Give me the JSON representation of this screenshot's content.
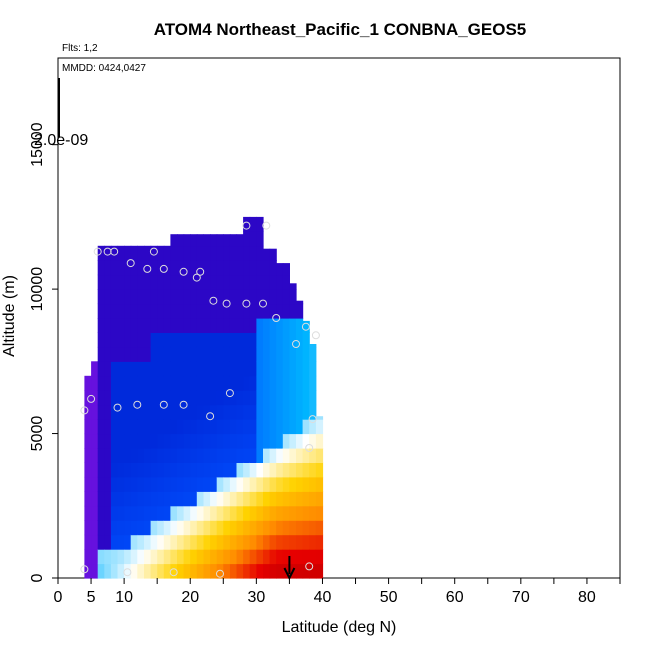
{
  "chart_data": {
    "type": "heatmap",
    "title": "ATOM4 Northeast_Pacific_1 CONBNA_GEOS5",
    "annotations": {
      "flights": "Flts: 1,2",
      "dates": "MMDD: 0424,0427",
      "scale_label": "2.0e-09"
    },
    "xlabel": "Latitude (deg N)",
    "ylabel": "Altitude (m)",
    "xlim": [
      0,
      85
    ],
    "ylim": [
      0,
      18000
    ],
    "x_ticks": [
      0,
      5,
      10,
      20,
      30,
      40,
      50,
      60,
      70,
      80
    ],
    "y_ticks": [
      0,
      5000,
      10000,
      15000
    ],
    "column_tops_m": [
      [
        4,
        6.5,
        7000
      ],
      [
        5,
        6.5,
        7500
      ],
      [
        6,
        11500
      ],
      [
        12,
        11500
      ],
      [
        17,
        11900
      ],
      [
        19,
        11900
      ],
      [
        24,
        11900
      ],
      [
        28,
        12500
      ],
      [
        31,
        11400
      ],
      [
        33,
        10900
      ],
      [
        35,
        10200
      ],
      [
        36,
        9600
      ],
      [
        37,
        8900
      ],
      [
        38,
        8100
      ],
      [
        39,
        5600
      ],
      [
        40,
        4300
      ]
    ],
    "colormap": [
      "#7a14e6",
      "#0000b4",
      "#0050ff",
      "#00b4ff",
      "#ffffff",
      "#ffd200",
      "#ff8c00",
      "#e60000",
      "#b40000"
    ],
    "points": [
      [
        4,
        300
      ],
      [
        4,
        5800
      ],
      [
        5,
        6200
      ],
      [
        6,
        11300
      ],
      [
        7.5,
        11300
      ],
      [
        8.5,
        11300
      ],
      [
        9,
        5900
      ],
      [
        11,
        10900
      ],
      [
        10.5,
        200
      ],
      [
        12,
        6000
      ],
      [
        13.5,
        10700
      ],
      [
        14.5,
        11300
      ],
      [
        16,
        10700
      ],
      [
        16,
        6000
      ],
      [
        17.5,
        200
      ],
      [
        19,
        6000
      ],
      [
        19,
        10600
      ],
      [
        21,
        10400
      ],
      [
        21.5,
        10600
      ],
      [
        23,
        5600
      ],
      [
        23.5,
        9600
      ],
      [
        24.5,
        150
      ],
      [
        25.5,
        9500
      ],
      [
        26,
        6400
      ],
      [
        28.5,
        9500
      ],
      [
        28.5,
        12200
      ],
      [
        31,
        9500
      ],
      [
        31.5,
        12200
      ],
      [
        33,
        9000
      ],
      [
        36,
        8100
      ],
      [
        37.5,
        8700
      ],
      [
        38,
        4500
      ],
      [
        38,
        400
      ],
      [
        38.5,
        5500
      ],
      [
        39,
        8400
      ]
    ],
    "arrow_x": 35
  }
}
